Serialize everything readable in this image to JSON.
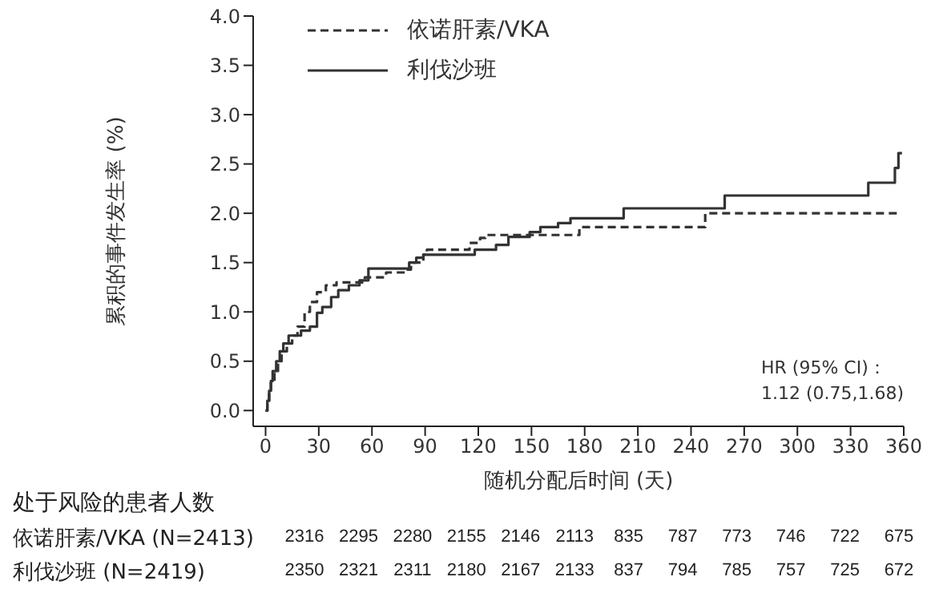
{
  "chart_data": {
    "type": "step",
    "ylabel": "累积的事件发生率 (%)",
    "xlabel": "随机分配后时间 (天)",
    "xlim": [
      -7,
      360
    ],
    "xticks": [
      0,
      30,
      60,
      90,
      120,
      150,
      180,
      210,
      240,
      270,
      300,
      330,
      360
    ],
    "ylim": [
      -0.16,
      4
    ],
    "yticks": [
      {
        "value": 0,
        "label": "0.0"
      },
      {
        "value": 0.5,
        "label": "0.5"
      },
      {
        "value": 1,
        "label": "1.0"
      },
      {
        "value": 1.5,
        "label": "1.5"
      },
      {
        "value": 2,
        "label": "2.0"
      },
      {
        "value": 2.5,
        "label": "2.5"
      },
      {
        "value": 3,
        "label": "3.0"
      },
      {
        "value": 3.5,
        "label": "3.5"
      },
      {
        "value": 4,
        "label": "4.0"
      }
    ],
    "legend": "top left",
    "marker": "none",
    "series": [
      {
        "name": "依诺肝素/VKA",
        "color": "#333333",
        "line_style": "dashed",
        "x": [
          0,
          1,
          2,
          3,
          5,
          7,
          9,
          12,
          15,
          18,
          22,
          25,
          29,
          34,
          40,
          56,
          62,
          68,
          79,
          82,
          89,
          91,
          111,
          115,
          121,
          124,
          169,
          177,
          248,
          358
        ],
        "values": [
          0,
          0.1,
          0.2,
          0.3,
          0.4,
          0.5,
          0.6,
          0.68,
          0.76,
          0.85,
          1.0,
          1.1,
          1.2,
          1.27,
          1.3,
          1.35,
          1.35,
          1.4,
          1.43,
          1.5,
          1.58,
          1.63,
          1.63,
          1.7,
          1.75,
          1.78,
          1.78,
          1.86,
          2.0,
          2.0
        ]
      },
      {
        "name": "利伐沙班",
        "color": "#333333",
        "line_style": "solid",
        "x": [
          0,
          1,
          2,
          3,
          4,
          6,
          8,
          10,
          13,
          20,
          25,
          29,
          32,
          37,
          41,
          47,
          53,
          58,
          80,
          81,
          85,
          89,
          118,
          130,
          137,
          149,
          155,
          165,
          172,
          202,
          259,
          340,
          355,
          357,
          359
        ],
        "values": [
          0,
          0.1,
          0.2,
          0.3,
          0.4,
          0.5,
          0.6,
          0.68,
          0.76,
          0.81,
          0.85,
          0.99,
          1.05,
          1.15,
          1.22,
          1.27,
          1.32,
          1.44,
          1.44,
          1.5,
          1.55,
          1.58,
          1.63,
          1.68,
          1.76,
          1.81,
          1.86,
          1.9,
          1.95,
          2.05,
          2.18,
          2.31,
          2.46,
          2.61,
          2.61
        ]
      }
    ],
    "annotations": [
      "HR (95% CI)：",
      "1.12 (0.75,1.68)",
      "处于风险的患者人数",
      "依诺肝素/VKA (N=2413)",
      "2316 2295 2280 2155 2146 2113 835 787 773 746 722 675",
      "利伐沙班 (N=2419)",
      "2350 2321 2311 2180 2167 2133 837 794 785 757 725 672"
    ]
  }
}
